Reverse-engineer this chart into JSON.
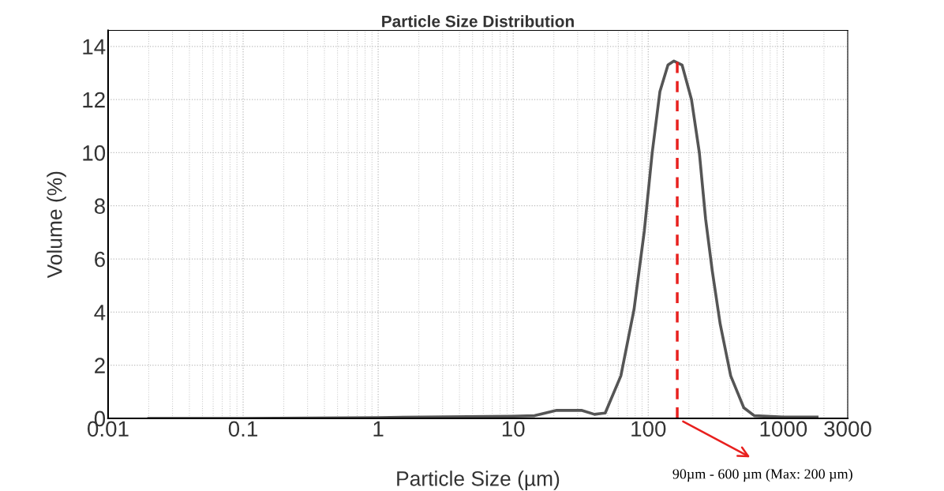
{
  "chart_data": {
    "type": "line",
    "title": "Particle Size Distribution",
    "xlabel": "Particle Size (µm)",
    "ylabel": "Volume (%)",
    "log": "x",
    "xlim": [
      0.01,
      3000
    ],
    "xticks": [
      0.01,
      0.1,
      1,
      10,
      100,
      1000,
      3000
    ],
    "ylim": [
      0,
      14.6
    ],
    "yticks": [
      0,
      2,
      4,
      6,
      8,
      10,
      12,
      14
    ],
    "grid": true,
    "marker": "none",
    "line_style": "solid",
    "series": [
      {
        "color": "#555555",
        "x": [
          0.02,
          0.1,
          1,
          10,
          14.4,
          21,
          32,
          40,
          48,
          62.7,
          78.5,
          93.5,
          107,
          122,
          140,
          155,
          178,
          209,
          239,
          266,
          298,
          341,
          408,
          510,
          610,
          1000,
          1780
        ],
        "values": [
          0,
          0,
          0.03,
          0.08,
          0.1,
          0.3,
          0.3,
          0.15,
          0.2,
          1.6,
          4.1,
          7.05,
          10.0,
          12.3,
          13.3,
          13.45,
          13.3,
          12.0,
          10.0,
          7.5,
          5.55,
          3.55,
          1.6,
          0.4,
          0.1,
          0.05,
          0.05
        ]
      }
    ],
    "ref_lines": [
      {
        "axis": "x",
        "value": 164,
        "color": "#e8201e",
        "line_style": "dashed"
      }
    ],
    "annotations": [
      "90µm - 600 µm (Max: 200 µm)"
    ]
  }
}
